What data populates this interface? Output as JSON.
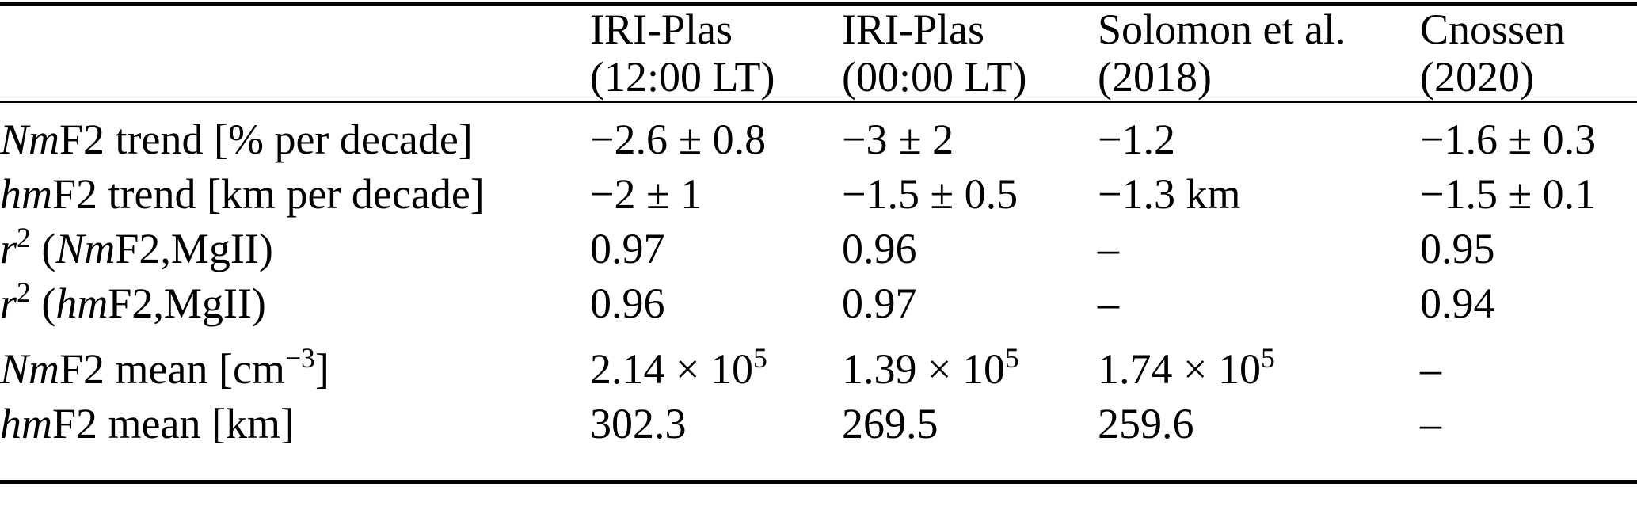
{
  "table": {
    "columns": [
      {
        "id": "row-label",
        "label_lines": [
          "",
          ""
        ]
      },
      {
        "id": "iri-plas-1200lt",
        "label_lines": [
          "IRI-Plas",
          "(12:00 LT)"
        ]
      },
      {
        "id": "iri-plas-0000lt",
        "label_lines": [
          "IRI-Plas",
          "(00:00 LT)"
        ]
      },
      {
        "id": "solomon-2018",
        "label_lines": [
          "Solomon et al.",
          "(2018)"
        ]
      },
      {
        "id": "cnossen-2020",
        "label_lines": [
          "Cnossen",
          "(2020)"
        ]
      }
    ],
    "rows": [
      {
        "id": "nmf2-trend",
        "label": [
          {
            "t": "Nm",
            "i": true
          },
          {
            "t": "F2 trend [% per decade]"
          }
        ],
        "values": [
          [
            {
              "t": "−2.6 ± 0.8"
            }
          ],
          [
            {
              "t": "−3 ± 2"
            }
          ],
          [
            {
              "t": "−1.2"
            }
          ],
          [
            {
              "t": "−1.6 ± 0.3"
            }
          ]
        ]
      },
      {
        "id": "hmf2-trend",
        "label": [
          {
            "t": "hm",
            "i": true
          },
          {
            "t": "F2 trend [km per decade]"
          }
        ],
        "values": [
          [
            {
              "t": "−2 ± 1"
            }
          ],
          [
            {
              "t": "−1.5 ± 0.5"
            }
          ],
          [
            {
              "t": "−1.3 km"
            }
          ],
          [
            {
              "t": "−1.5 ± 0.1"
            }
          ]
        ]
      },
      {
        "id": "r2-nmf2-mgii",
        "label": [
          {
            "t": "r",
            "i": true
          },
          {
            "t": "2",
            "sup": true
          },
          {
            "t": " ("
          },
          {
            "t": "Nm",
            "i": true
          },
          {
            "t": "F2,MgII)"
          }
        ],
        "values": [
          [
            {
              "t": "0.97"
            }
          ],
          [
            {
              "t": "0.96"
            }
          ],
          [
            {
              "t": "–"
            }
          ],
          [
            {
              "t": "0.95"
            }
          ]
        ]
      },
      {
        "id": "r2-hmf2-mgii",
        "label": [
          {
            "t": "r",
            "i": true
          },
          {
            "t": "2",
            "sup": true
          },
          {
            "t": " ("
          },
          {
            "t": "hm",
            "i": true
          },
          {
            "t": "F2,MgII)"
          }
        ],
        "values": [
          [
            {
              "t": "0.96"
            }
          ],
          [
            {
              "t": "0.97"
            }
          ],
          [
            {
              "t": "–"
            }
          ],
          [
            {
              "t": "0.94"
            }
          ]
        ]
      },
      {
        "id": "nmf2-mean",
        "label": [
          {
            "t": "Nm",
            "i": true
          },
          {
            "t": "F2 mean [cm"
          },
          {
            "t": "−3",
            "sup": true
          },
          {
            "t": "]"
          }
        ],
        "values": [
          [
            {
              "t": "2.14 × 10"
            },
            {
              "t": "5",
              "sup": true
            }
          ],
          [
            {
              "t": "1.39 × 10"
            },
            {
              "t": "5",
              "sup": true
            }
          ],
          [
            {
              "t": "1.74 × 10"
            },
            {
              "t": "5",
              "sup": true
            }
          ],
          [
            {
              "t": "–"
            }
          ]
        ]
      },
      {
        "id": "hmf2-mean",
        "label": [
          {
            "t": "hm",
            "i": true
          },
          {
            "t": "F2 mean [km]"
          }
        ],
        "values": [
          [
            {
              "t": "302.3"
            }
          ],
          [
            {
              "t": "269.5"
            }
          ],
          [
            {
              "t": "259.6"
            }
          ],
          [
            {
              "t": "–"
            }
          ]
        ]
      }
    ]
  }
}
